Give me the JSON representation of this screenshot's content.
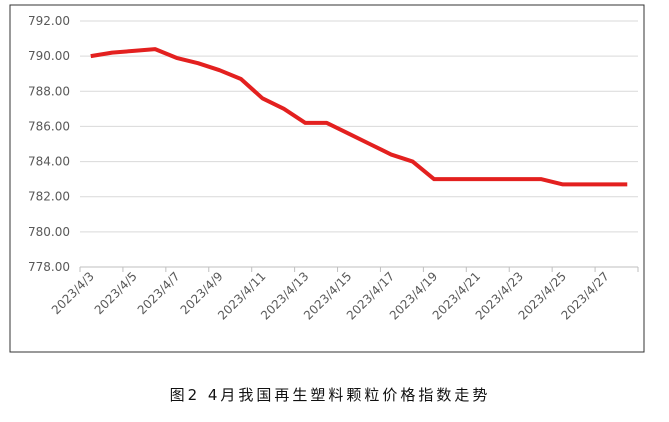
{
  "chart_data": {
    "type": "line",
    "categories": [
      "2023/4/3",
      null,
      "2023/4/5",
      null,
      "2023/4/7",
      null,
      "2023/4/9",
      null,
      "2023/4/11",
      null,
      "2023/4/13",
      null,
      "2023/4/15",
      null,
      "2023/4/17",
      null,
      "2023/4/19",
      null,
      "2023/4/21",
      null,
      "2023/4/23",
      null,
      "2023/4/25",
      null,
      "2023/4/27",
      null
    ],
    "values": [
      790.0,
      790.2,
      790.3,
      790.4,
      789.9,
      789.6,
      789.2,
      788.7,
      787.6,
      787.0,
      786.2,
      786.2,
      785.6,
      785.0,
      784.4,
      784.0,
      783.0,
      783.0,
      783.0,
      783.0,
      783.0,
      783.0,
      782.7,
      782.7,
      782.7,
      782.7
    ],
    "color": "#e3201f",
    "ylim": [
      778,
      792
    ],
    "yticks": [
      {
        "value": 778,
        "label": "778.00"
      },
      {
        "value": 780,
        "label": "780.00"
      },
      {
        "value": 782,
        "label": "782.00"
      },
      {
        "value": 784,
        "label": "784.00"
      },
      {
        "value": 786,
        "label": "786.00"
      },
      {
        "value": 788,
        "label": "788.00"
      },
      {
        "value": 790,
        "label": "790.00"
      },
      {
        "value": 792,
        "label": "792.00"
      }
    ],
    "grid": true
  },
  "caption": "图2 4月我国再生塑料颗粒价格指数走势"
}
